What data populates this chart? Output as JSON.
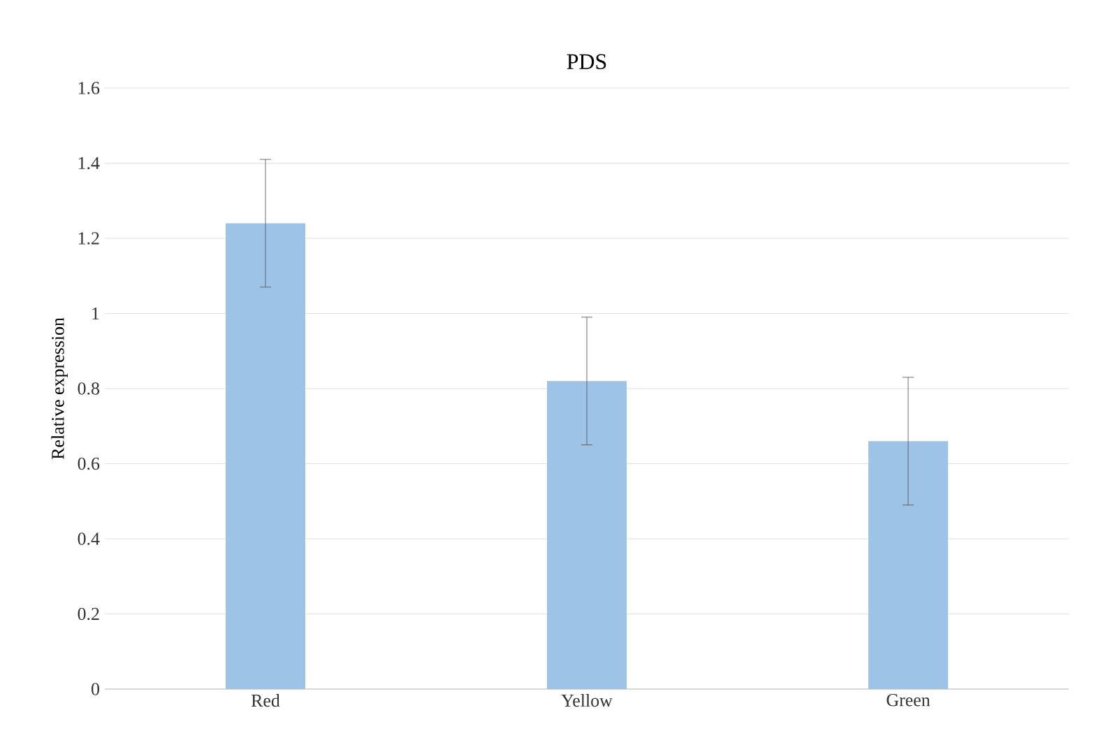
{
  "chart_data": {
    "type": "bar",
    "title": "PDS",
    "ylabel": "Relative expression",
    "categories": [
      "Red",
      "Yellow",
      "Green"
    ],
    "values": [
      1.24,
      0.82,
      0.66
    ],
    "errors": [
      0.17,
      0.17,
      0.17
    ],
    "color": "#9dc3e6",
    "ylim": [
      0,
      1.6
    ],
    "yticks": [
      0,
      0.2,
      0.4,
      0.6,
      0.8,
      1,
      1.2,
      1.4,
      1.6
    ],
    "grid": "y"
  }
}
